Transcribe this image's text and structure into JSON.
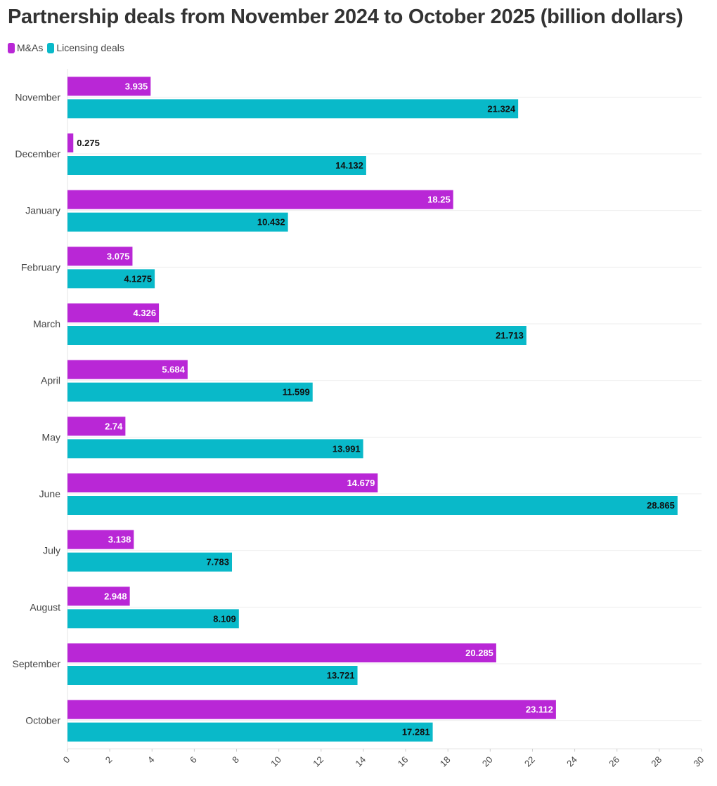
{
  "chart_data": {
    "type": "bar",
    "orientation": "horizontal",
    "title": "Partnership deals from November 2024 to October 2025 (billion dollars)",
    "categories": [
      "November",
      "December",
      "January",
      "February",
      "March",
      "April",
      "May",
      "June",
      "July",
      "August",
      "September",
      "October"
    ],
    "series": [
      {
        "name": "M&As",
        "color": "#b927d6",
        "values": [
          3.935,
          0.275,
          18.25,
          3.075,
          4.326,
          5.684,
          2.74,
          14.679,
          3.138,
          2.948,
          20.285,
          23.112
        ],
        "labels": [
          "3.935",
          "0.275",
          "18.25",
          "3.075",
          "4.326",
          "5.684",
          "2.74",
          "14.679",
          "3.138",
          "2.948",
          "20.285",
          "23.112"
        ]
      },
      {
        "name": "Licensing deals",
        "color": "#09b9c9",
        "values": [
          21.324,
          14.132,
          10.432,
          4.1275,
          21.713,
          11.599,
          13.991,
          28.865,
          7.783,
          8.109,
          13.721,
          17.281
        ],
        "labels": [
          "21.324",
          "14.132",
          "10.432",
          "4.1275",
          "21.713",
          "11.599",
          "13.991",
          "28.865",
          "7.783",
          "8.109",
          "13.721",
          "17.281"
        ]
      }
    ],
    "xlim": [
      0,
      30
    ],
    "xticks": [
      "0",
      "2",
      "4",
      "6",
      "8",
      "10",
      "12",
      "14",
      "16",
      "18",
      "20",
      "22",
      "24",
      "26",
      "28",
      "30"
    ],
    "grid": true,
    "legend": "top-left"
  }
}
